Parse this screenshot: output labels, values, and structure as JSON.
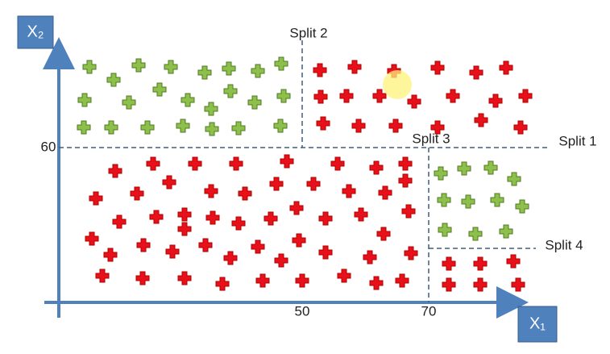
{
  "axes": {
    "y_label": "X₂",
    "x_label": "X₁",
    "y_tick": "60",
    "x_ticks": [
      "50",
      "70"
    ]
  },
  "splits": [
    "Split 1",
    "Split 2",
    "Split 3",
    "Split 4"
  ]
}
